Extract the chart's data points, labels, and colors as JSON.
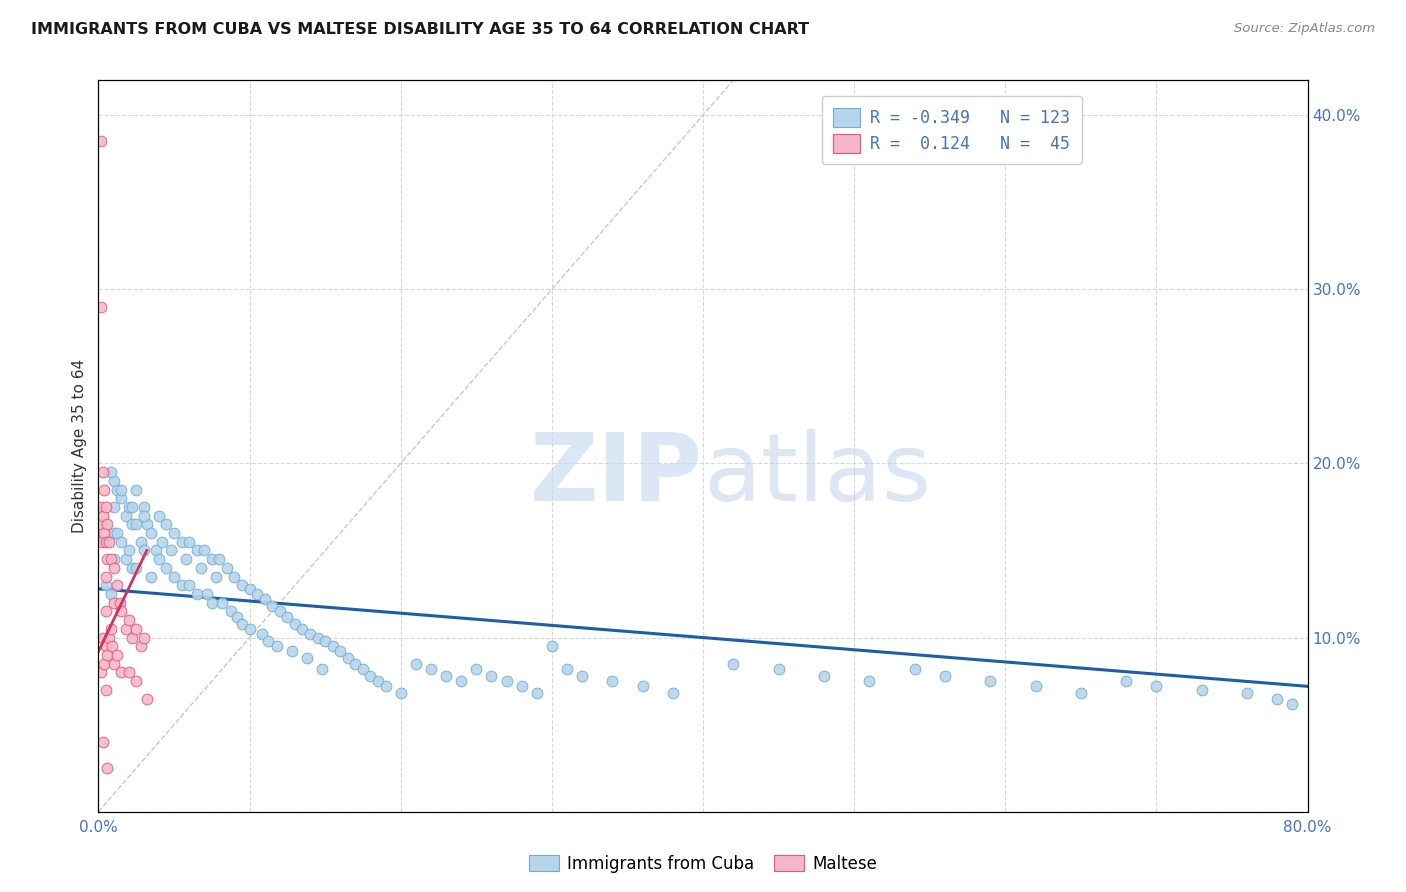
{
  "title": "IMMIGRANTS FROM CUBA VS MALTESE DISABILITY AGE 35 TO 64 CORRELATION CHART",
  "source": "Source: ZipAtlas.com",
  "ylabel": "Disability Age 35 to 64",
  "y_ticks": [
    0.0,
    0.1,
    0.2,
    0.3,
    0.4
  ],
  "x_ticks": [
    0.0,
    0.1,
    0.2,
    0.3,
    0.4,
    0.5,
    0.6,
    0.7,
    0.8
  ],
  "blue_color": "#6baed6",
  "pink_color": "#e8547a",
  "blue_fill": "#b8d4ea",
  "pink_fill": "#f4b8c8",
  "blue_line_color": "#1a5fa8",
  "pink_line_color": "#d43060",
  "diagonal_color": "#c8c8c8",
  "grid_color": "#d8d8d8",
  "xlim": [
    0.0,
    0.8
  ],
  "ylim": [
    0.0,
    0.42
  ],
  "blue_scatter_x": [
    0.005,
    0.008,
    0.01,
    0.01,
    0.01,
    0.01,
    0.012,
    0.012,
    0.015,
    0.015,
    0.018,
    0.018,
    0.02,
    0.02,
    0.022,
    0.022,
    0.025,
    0.025,
    0.025,
    0.028,
    0.03,
    0.03,
    0.032,
    0.035,
    0.035,
    0.038,
    0.04,
    0.04,
    0.042,
    0.045,
    0.045,
    0.048,
    0.05,
    0.05,
    0.055,
    0.055,
    0.058,
    0.06,
    0.06,
    0.065,
    0.065,
    0.068,
    0.07,
    0.072,
    0.075,
    0.075,
    0.078,
    0.08,
    0.082,
    0.085,
    0.088,
    0.09,
    0.092,
    0.095,
    0.095,
    0.1,
    0.1,
    0.105,
    0.108,
    0.11,
    0.112,
    0.115,
    0.118,
    0.12,
    0.125,
    0.128,
    0.13,
    0.135,
    0.138,
    0.14,
    0.145,
    0.148,
    0.15,
    0.155,
    0.16,
    0.165,
    0.17,
    0.175,
    0.18,
    0.185,
    0.19,
    0.2,
    0.21,
    0.22,
    0.23,
    0.24,
    0.25,
    0.26,
    0.27,
    0.28,
    0.29,
    0.3,
    0.31,
    0.32,
    0.34,
    0.36,
    0.38,
    0.42,
    0.45,
    0.48,
    0.51,
    0.54,
    0.56,
    0.59,
    0.62,
    0.65,
    0.68,
    0.7,
    0.73,
    0.76,
    0.78,
    0.79,
    0.008,
    0.015,
    0.022,
    0.03
  ],
  "blue_scatter_y": [
    0.13,
    0.125,
    0.19,
    0.175,
    0.16,
    0.145,
    0.185,
    0.16,
    0.18,
    0.155,
    0.17,
    0.145,
    0.175,
    0.15,
    0.165,
    0.14,
    0.185,
    0.165,
    0.14,
    0.155,
    0.175,
    0.15,
    0.165,
    0.16,
    0.135,
    0.15,
    0.17,
    0.145,
    0.155,
    0.165,
    0.14,
    0.15,
    0.16,
    0.135,
    0.155,
    0.13,
    0.145,
    0.155,
    0.13,
    0.15,
    0.125,
    0.14,
    0.15,
    0.125,
    0.145,
    0.12,
    0.135,
    0.145,
    0.12,
    0.14,
    0.115,
    0.135,
    0.112,
    0.13,
    0.108,
    0.128,
    0.105,
    0.125,
    0.102,
    0.122,
    0.098,
    0.118,
    0.095,
    0.115,
    0.112,
    0.092,
    0.108,
    0.105,
    0.088,
    0.102,
    0.1,
    0.082,
    0.098,
    0.095,
    0.092,
    0.088,
    0.085,
    0.082,
    0.078,
    0.075,
    0.072,
    0.068,
    0.085,
    0.082,
    0.078,
    0.075,
    0.082,
    0.078,
    0.075,
    0.072,
    0.068,
    0.095,
    0.082,
    0.078,
    0.075,
    0.072,
    0.068,
    0.085,
    0.082,
    0.078,
    0.075,
    0.082,
    0.078,
    0.075,
    0.072,
    0.068,
    0.075,
    0.072,
    0.07,
    0.068,
    0.065,
    0.062,
    0.195,
    0.185,
    0.175,
    0.17
  ],
  "pink_scatter_x": [
    0.002,
    0.002,
    0.002,
    0.002,
    0.002,
    0.002,
    0.003,
    0.003,
    0.003,
    0.004,
    0.004,
    0.004,
    0.005,
    0.005,
    0.005,
    0.005,
    0.005,
    0.005,
    0.006,
    0.006,
    0.006,
    0.007,
    0.007,
    0.008,
    0.008,
    0.009,
    0.01,
    0.01,
    0.01,
    0.012,
    0.012,
    0.014,
    0.015,
    0.015,
    0.018,
    0.02,
    0.02,
    0.022,
    0.025,
    0.025,
    0.028,
    0.03,
    0.032,
    0.003,
    0.006
  ],
  "pink_scatter_y": [
    0.385,
    0.29,
    0.175,
    0.165,
    0.155,
    0.08,
    0.195,
    0.17,
    0.1,
    0.185,
    0.16,
    0.085,
    0.175,
    0.155,
    0.135,
    0.115,
    0.095,
    0.07,
    0.165,
    0.145,
    0.09,
    0.155,
    0.1,
    0.145,
    0.105,
    0.095,
    0.14,
    0.12,
    0.085,
    0.13,
    0.09,
    0.12,
    0.115,
    0.08,
    0.105,
    0.11,
    0.08,
    0.1,
    0.105,
    0.075,
    0.095,
    0.1,
    0.065,
    0.04,
    0.025
  ],
  "blue_trend_x": [
    0.0,
    0.8
  ],
  "blue_trend_y": [
    0.128,
    0.072
  ],
  "pink_trend_x": [
    0.0,
    0.032
  ],
  "pink_trend_y": [
    0.092,
    0.15
  ],
  "legend_blue_R": "-0.349",
  "legend_blue_N": "123",
  "legend_pink_R": "0.124",
  "legend_pink_N": "45",
  "watermark_zip": "ZIP",
  "watermark_atlas": "atlas"
}
